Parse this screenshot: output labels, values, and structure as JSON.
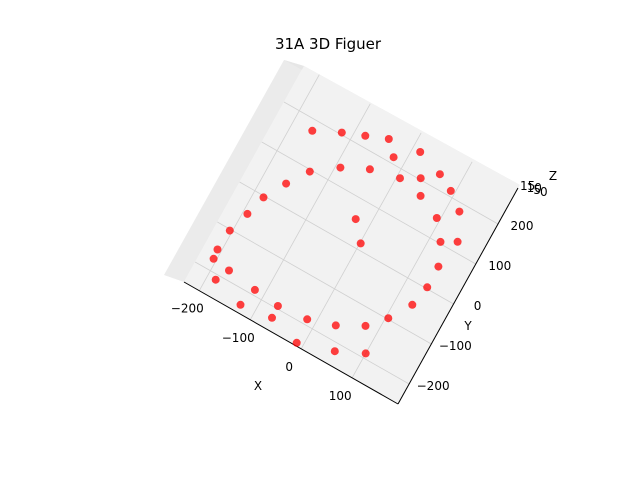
{
  "chart_data": {
    "type": "scatter",
    "projection": "3d",
    "title": "31A 3D Figuer",
    "xlabel": "X",
    "ylabel": "Y",
    "zlabel": "Z",
    "x_ticks": [
      "−200",
      "−100",
      "0",
      "100"
    ],
    "y_ticks": [
      "−200",
      "−100",
      "0",
      "100",
      "200"
    ],
    "z_ticks": [
      "0",
      "5",
      "10",
      "15"
    ],
    "xlim": [
      -230,
      190
    ],
    "ylim": [
      -250,
      290
    ],
    "zlim": [
      0,
      15
    ],
    "grid": true,
    "marker_color": "#ff0000",
    "series": [
      {
        "color": "#ff0000",
        "description_shape": "dense ring of points with scattered outliers",
        "points": [
          [
            -200,
            -150,
            3
          ],
          [
            -195,
            -100,
            4
          ],
          [
            -185,
            -50,
            3
          ],
          [
            -170,
            0,
            5
          ],
          [
            -150,
            50,
            4
          ],
          [
            -120,
            100,
            6
          ],
          [
            -80,
            140,
            5
          ],
          [
            -30,
            170,
            7
          ],
          [
            20,
            185,
            6
          ],
          [
            70,
            175,
            8
          ],
          [
            110,
            150,
            7
          ],
          [
            140,
            110,
            9
          ],
          [
            155,
            60,
            8
          ],
          [
            160,
            10,
            10
          ],
          [
            150,
            -40,
            9
          ],
          [
            130,
            -90,
            11
          ],
          [
            100,
            -130,
            10
          ],
          [
            60,
            -160,
            12
          ],
          [
            10,
            -180,
            11
          ],
          [
            -40,
            -185,
            13
          ],
          [
            -90,
            -180,
            12
          ],
          [
            -140,
            -170,
            14
          ],
          [
            -175,
            -165,
            13
          ],
          [
            -60,
            230,
            9
          ],
          [
            -20,
            250,
            10
          ],
          [
            40,
            260,
            11
          ],
          [
            90,
            240,
            12
          ],
          [
            120,
            220,
            12
          ],
          [
            -100,
            210,
            8
          ],
          [
            0,
            220,
            9
          ],
          [
            60,
            210,
            10
          ],
          [
            -150,
            180,
            6
          ],
          [
            150,
            190,
            12
          ],
          [
            170,
            130,
            11
          ],
          [
            -10,
            60,
            7
          ],
          [
            20,
            20,
            8
          ],
          [
            -180,
            -210,
            2
          ],
          [
            -120,
            -230,
            3
          ],
          [
            80,
            -210,
            12
          ],
          [
            130,
            -180,
            13
          ],
          [
            -60,
            -220,
            4
          ],
          [
            0,
            -240,
            5
          ]
        ]
      }
    ]
  }
}
